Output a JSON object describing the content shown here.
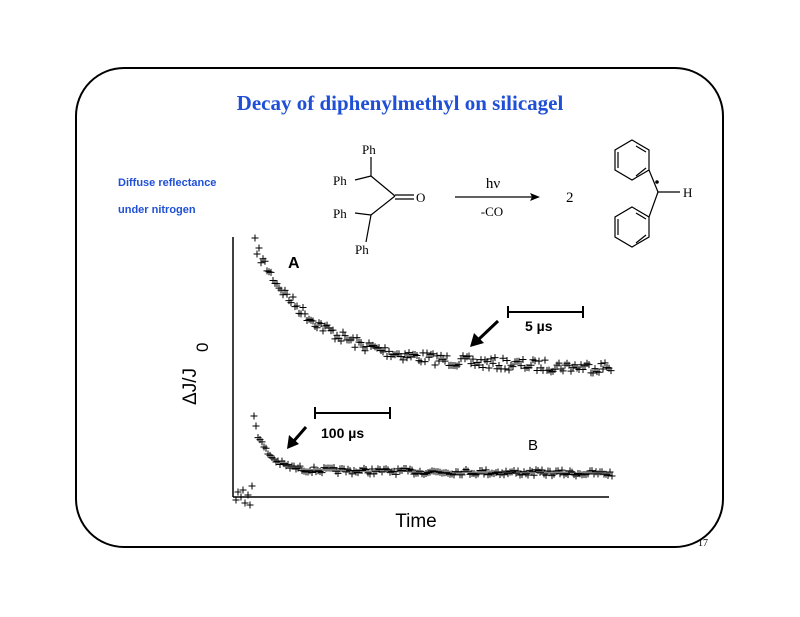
{
  "title": "Decay of diphenylmethyl on silicagel",
  "side_note": [
    "Diffuse reflectance",
    "under nitrogen"
  ],
  "reaction": {
    "phenyl_groups": [
      "Ph",
      "Ph",
      "Ph",
      "Ph"
    ],
    "oxygen": "O",
    "condition_above": "hν",
    "condition_below": "-CO",
    "coefficient": "2",
    "hydrogen": "H"
  },
  "plot": {
    "curve_labels": [
      "A",
      "B"
    ],
    "scale_bars": [
      "5 µs",
      "100 µs"
    ],
    "y_label": "ΔJ/J",
    "y_label_subscript": "0",
    "x_label": "Time"
  },
  "page_number": "17"
}
